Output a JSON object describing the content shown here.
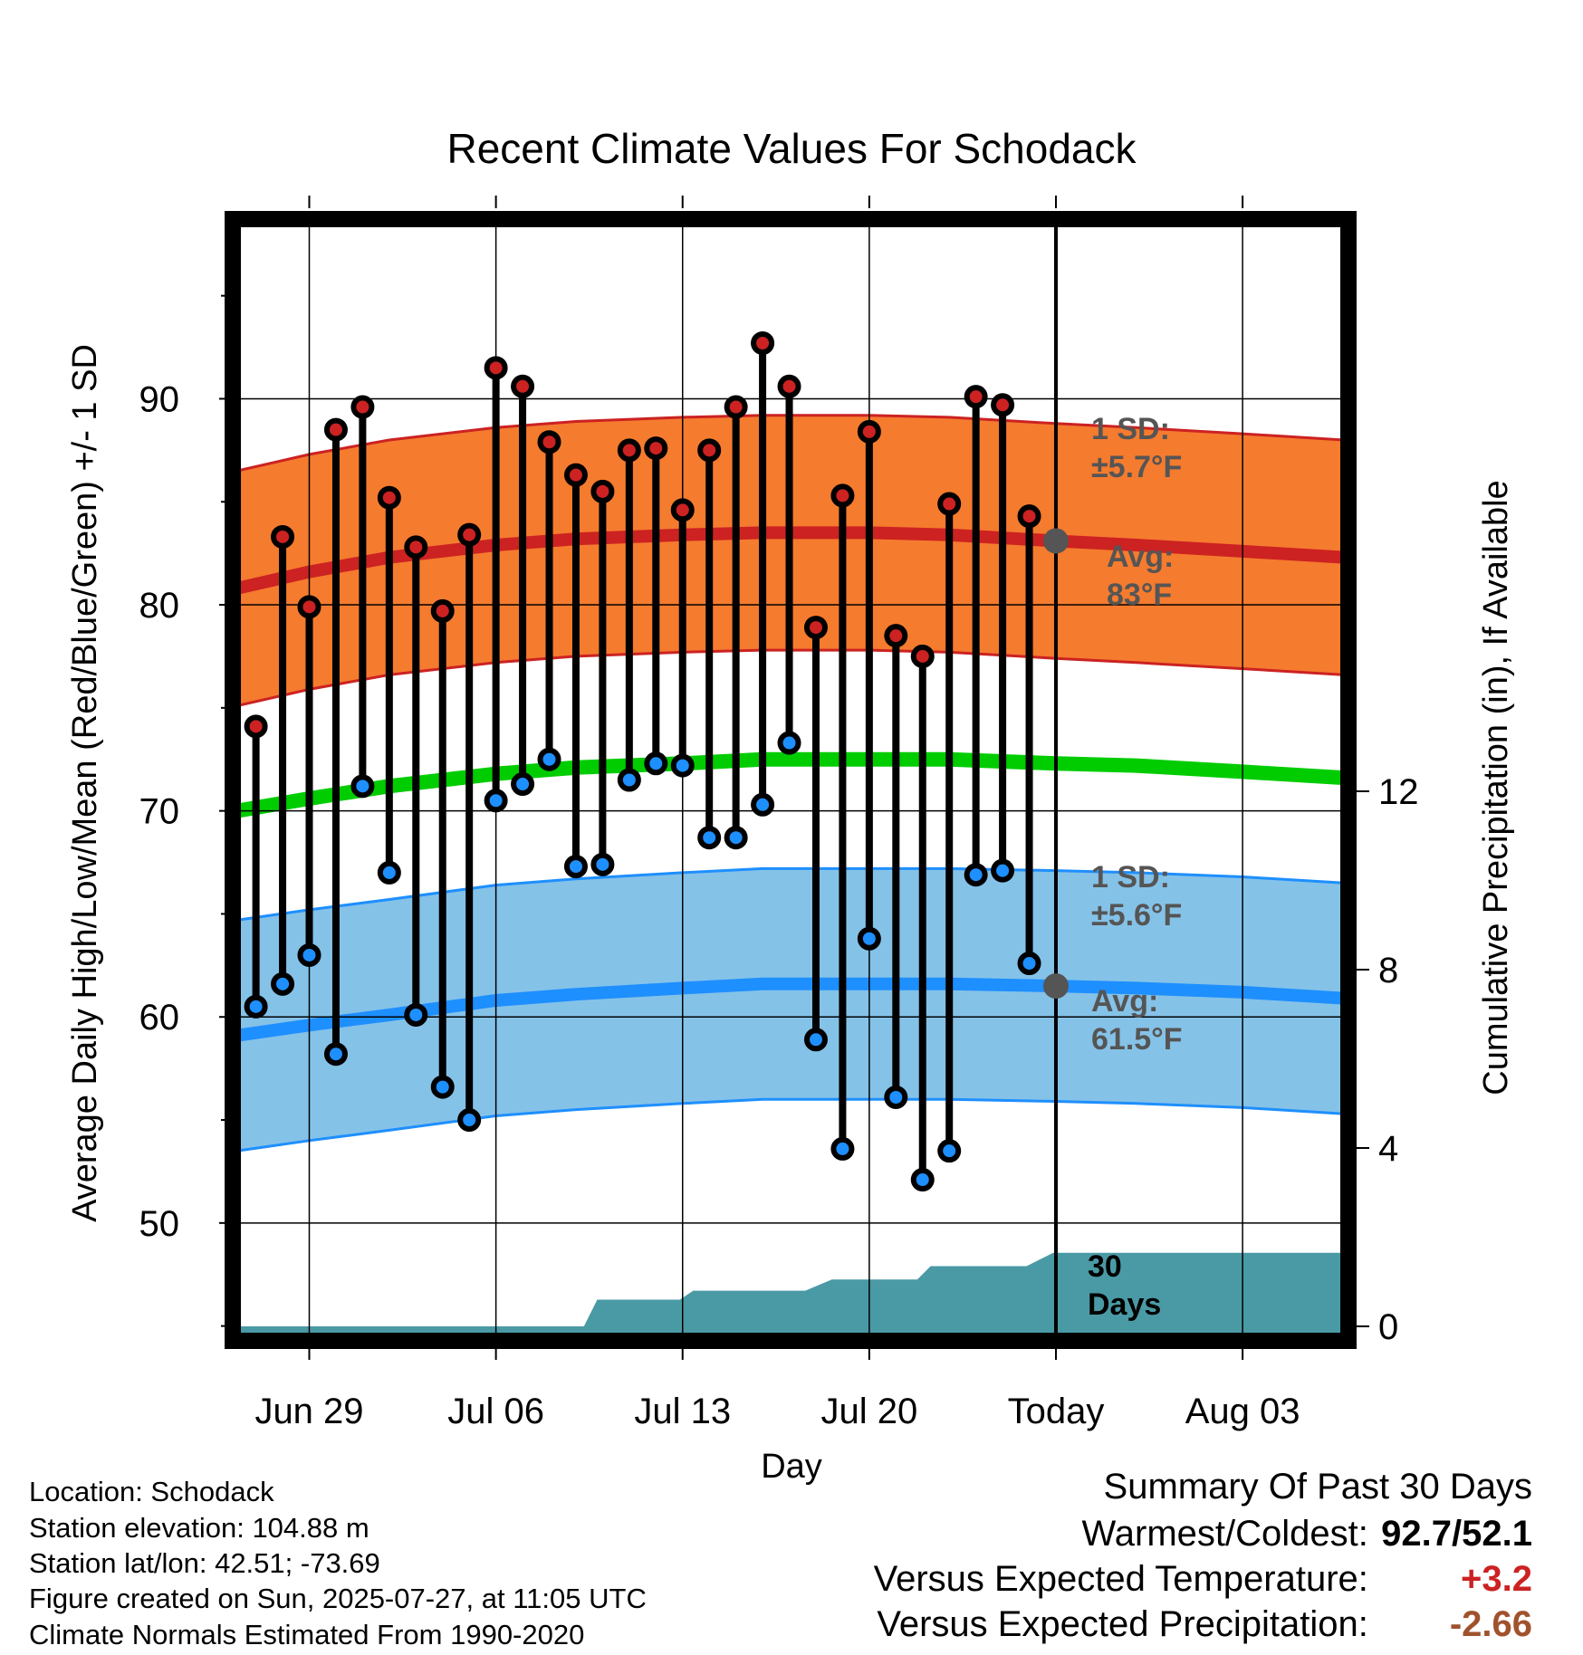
{
  "chart_data": {
    "type": "line",
    "title": "Recent Climate Values For Schodack",
    "xlabel": "Day",
    "ylabel": "Average Daily High/Low/Mean (Red/Blue/Green) +/- 1 SD",
    "y2label": "Cumulative Precipitation (in), If Available",
    "ylim": [
      44.5,
      98.5
    ],
    "y2lim": [
      0,
      28.5
    ],
    "yticks": [
      50,
      60,
      70,
      80,
      90
    ],
    "y2ticks": [
      0,
      4,
      8,
      12
    ],
    "xlim": [
      -2.7,
      38.8
    ],
    "xtick_positions": [
      0,
      7,
      14,
      21,
      28,
      35
    ],
    "xtick_labels": [
      "Jun 29",
      "Jul 06",
      "Jul 13",
      "Jul 20",
      "Today",
      "Aug 03"
    ],
    "grid": true,
    "today_index": 28,
    "days": [
      -2,
      -1,
      0,
      1,
      2,
      3,
      4,
      5,
      6,
      7,
      8,
      9,
      10,
      11,
      12,
      13,
      14,
      15,
      16,
      17,
      18,
      19,
      20,
      21,
      22,
      23,
      24,
      25,
      26,
      27
    ],
    "daily_high": [
      74.1,
      83.3,
      79.9,
      88.5,
      89.6,
      85.2,
      82.8,
      79.7,
      83.4,
      91.5,
      90.6,
      87.9,
      86.3,
      85.5,
      87.5,
      87.6,
      84.6,
      87.5,
      89.6,
      92.7,
      90.6,
      78.9,
      85.3,
      88.4,
      78.5,
      77.5,
      84.9,
      90.1,
      89.7,
      84.3
    ],
    "daily_low": [
      60.5,
      61.6,
      63.0,
      58.2,
      71.2,
      67.0,
      60.1,
      56.6,
      55.0,
      70.5,
      71.3,
      72.5,
      67.3,
      67.4,
      71.5,
      72.3,
      72.2,
      68.7,
      68.7,
      70.3,
      73.3,
      58.9,
      53.6,
      63.8,
      56.1,
      52.1,
      53.5,
      66.9,
      67.1,
      62.6
    ],
    "normal_days": [
      -2.7,
      0,
      3,
      7,
      10,
      14,
      17,
      21,
      24,
      28,
      31,
      35,
      38.8
    ],
    "normal_high": [
      80.8,
      81.6,
      82.3,
      82.9,
      83.2,
      83.4,
      83.5,
      83.5,
      83.4,
      83.1,
      82.9,
      82.6,
      82.3
    ],
    "normal_high_sd": 5.7,
    "normal_low": [
      59.1,
      59.6,
      60.1,
      60.8,
      61.1,
      61.4,
      61.6,
      61.6,
      61.6,
      61.5,
      61.4,
      61.2,
      60.9
    ],
    "normal_low_sd": 5.6,
    "normal_mean": [
      70.0,
      70.6,
      71.2,
      71.8,
      72.1,
      72.3,
      72.5,
      72.5,
      72.5,
      72.3,
      72.2,
      71.9,
      71.6
    ],
    "precip_days": [
      -2.7,
      10.3,
      10.8,
      13.9,
      14.4,
      18.6,
      19.6,
      22.8,
      23.3,
      26.9,
      27.9,
      38.8
    ],
    "precip_cum": [
      0,
      0,
      0.6,
      0.6,
      0.8,
      0.8,
      1.05,
      1.05,
      1.35,
      1.35,
      1.65,
      1.65
    ],
    "annotations": {
      "high_sd": [
        "1 SD:",
        "±5.7°F"
      ],
      "high_avg": [
        "Avg:",
        "83°F"
      ],
      "low_sd": [
        "1 SD:",
        "±5.6°F"
      ],
      "low_avg": [
        "Avg:",
        "61.5°F"
      ],
      "period": [
        "30",
        "Days"
      ]
    },
    "colors": {
      "high_band": "#f57b2e",
      "high_line": "#cc2222",
      "low_band": "#85c2e8",
      "low_line": "#1e8fff",
      "mean_line": "#00cc00",
      "precip": "#4a9aa5",
      "high_point": "#cc2222",
      "low_point": "#1e8fff",
      "annotation": "#555555"
    }
  },
  "footer": {
    "location": "Location: Schodack",
    "elevation": "Station elevation: 104.88 m",
    "latlon": "Station lat/lon: 42.51; -73.69",
    "created": "Figure created on Sun, 2025-07-27, at 11:05 UTC",
    "normals": "Climate Normals Estimated From 1990-2020"
  },
  "summary": {
    "title": "Summary Of Past 30 Days",
    "warmest_label": "Warmest/Coldest:",
    "warmest_value": "92.7/52.1",
    "temp_label": "Versus Expected Temperature:",
    "temp_value": "+3.2",
    "temp_color": "#cc2222",
    "precip_label": "Versus Expected Precipitation:",
    "precip_value": "-2.66",
    "precip_color": "#a0522d"
  }
}
